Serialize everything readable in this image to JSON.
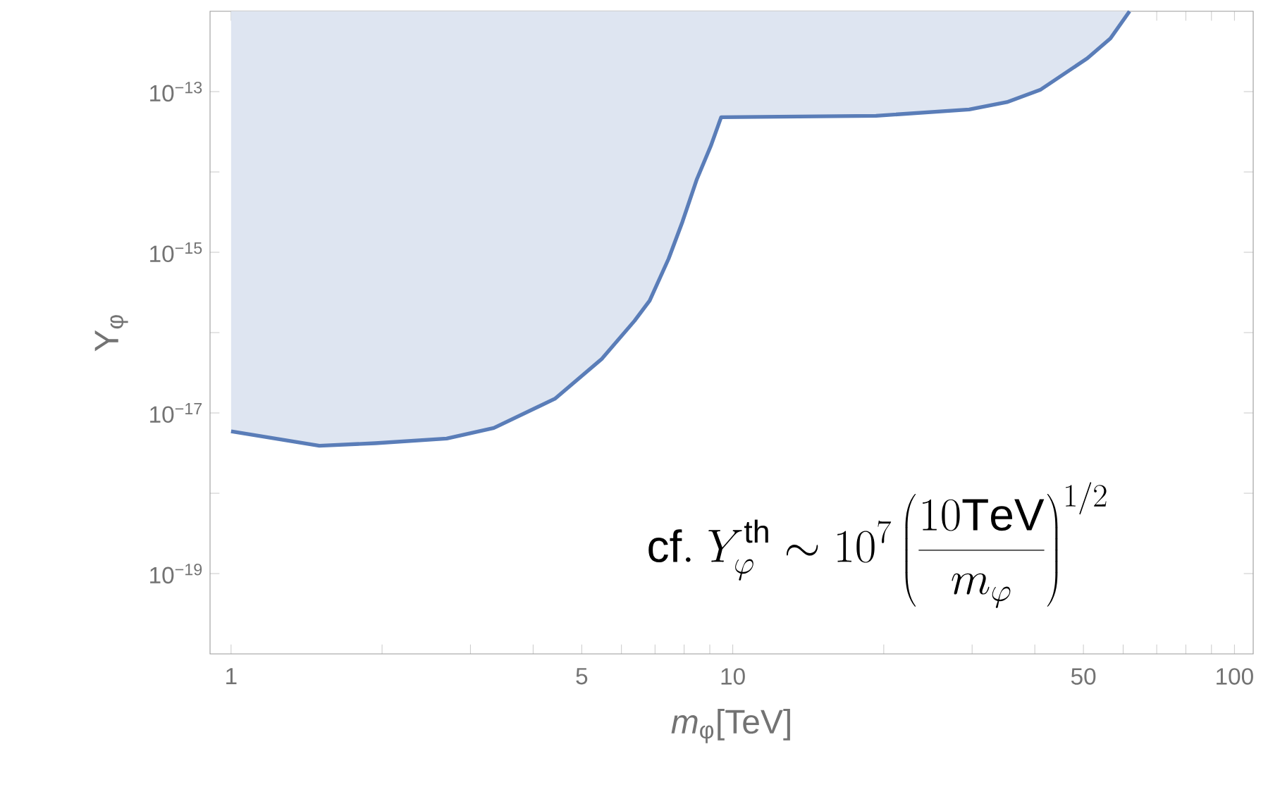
{
  "chart_data": {
    "type": "line",
    "xlabel": "*m*$_{φ}$[TeV]",
    "ylabel": "Y$_{φ}$",
    "log": "xy",
    "xlim": [
      0.908,
      109
    ],
    "ylim": [
      1e-20,
      1e-12
    ],
    "xticks": [
      1,
      {
        "value": 2,
        "label": null
      },
      {
        "value": 3,
        "label": null
      },
      {
        "value": 4,
        "label": null
      },
      5,
      {
        "value": 6,
        "label": null
      },
      {
        "value": 7,
        "label": null
      },
      {
        "value": 8,
        "label": null
      },
      {
        "value": 9,
        "label": null
      },
      10,
      {
        "value": 20,
        "label": null
      },
      {
        "value": 30,
        "label": null
      },
      {
        "value": 40,
        "label": null
      },
      50,
      {
        "value": 60,
        "label": null
      },
      {
        "value": 70,
        "label": null
      },
      {
        "value": 80,
        "label": null
      },
      {
        "value": 90,
        "label": null
      },
      100
    ],
    "yticks": [
      {
        "value": 1e-19,
        "label": "10$^{−19}$"
      },
      {
        "value": 1e-18,
        "label": null
      },
      {
        "value": 1e-17,
        "label": "10$^{−17}$"
      },
      {
        "value": 1e-16,
        "label": null
      },
      {
        "value": 1e-15,
        "label": "10$^{−15}$"
      },
      {
        "value": 1e-14,
        "label": null
      },
      {
        "value": 1e-13,
        "label": "10$^{−13}$"
      }
    ],
    "grid": false,
    "marker": "none",
    "line_style": "solid",
    "series": [
      {
        "color": "#5a7db8",
        "x": [
          1,
          1.5,
          1.94,
          2.69,
          3.34,
          4.42,
          5.48,
          6.37,
          6.83,
          7.45,
          7.94,
          8.48,
          9.04,
          9.48,
          19.3,
          29.6,
          35.2,
          41,
          50.9,
          56.6,
          61.8
        ],
        "values": [
          5.9e-18,
          3.9e-18,
          4.2e-18,
          4.8e-18,
          6.5e-18,
          1.5e-17,
          4.7e-17,
          1.4e-16,
          2.5e-16,
          8.3e-16,
          2.4e-15,
          8.1e-15,
          2.1e-14,
          4.8e-14,
          5e-14,
          6e-14,
          7.4e-14,
          1.05e-13,
          2.6e-13,
          4.6e-13,
          1e-12
        ],
        "lower": [
          5.9e-18,
          3.9e-18,
          4.2e-18,
          4.8e-18,
          6.5e-18,
          1.5e-17,
          4.7e-17,
          1.4e-16,
          2.5e-16,
          8.3e-16,
          2.4e-15,
          8.1e-15,
          2.1e-14,
          4.8e-14,
          5e-14,
          6e-14,
          7.4e-14,
          1.05e-13,
          2.6e-13,
          4.6e-13,
          1e-12
        ],
        "upper": [
          1e-12,
          1e-12,
          1e-12,
          1e-12,
          1e-12,
          1e-12,
          1e-12,
          1e-12,
          1e-12,
          1e-12,
          1e-12,
          1e-12,
          1e-12,
          1e-12,
          1e-12,
          1e-12,
          1e-12,
          1e-12,
          1e-12,
          1e-12,
          1e-12
        ]
      }
    ],
    "annotations": [
      "\\mathrm{cf.}\\ Y_{\\varphi}^{\\mathrm{th}}\\sim 10^{7}\\left(\\frac{10\\mathrm{TeV}}{m_{\\varphi}}\\right)^{1/2}"
    ]
  }
}
